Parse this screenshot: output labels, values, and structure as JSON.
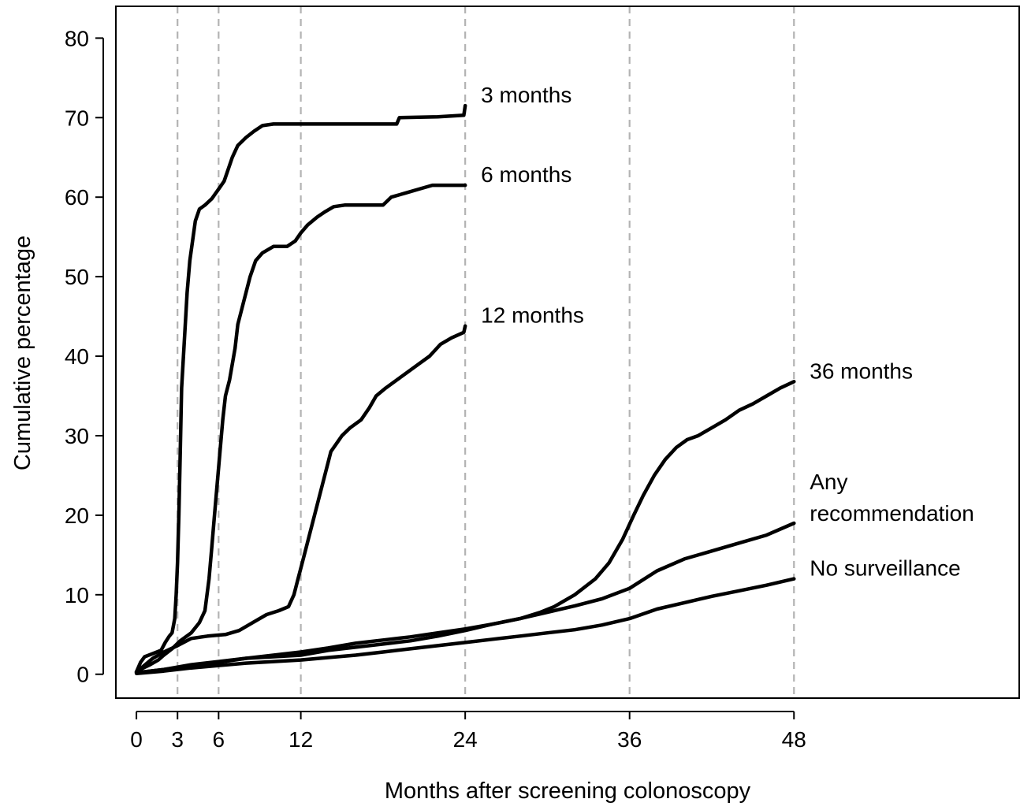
{
  "chart_data": {
    "type": "line",
    "xlabel": "Months after screening colonoscopy",
    "ylabel": "Cumulative percentage",
    "xlim": [
      -1.5,
      64.5
    ],
    "ylim": [
      -3,
      84
    ],
    "x_ticks": [
      0,
      3,
      6,
      12,
      24,
      36,
      48
    ],
    "y_ticks": [
      0,
      10,
      20,
      30,
      40,
      50,
      60,
      70,
      80
    ],
    "reference_lines_x": [
      3,
      6,
      12,
      24,
      36,
      48
    ],
    "grid": false,
    "series": [
      {
        "name": "3 months",
        "label_lines": [
          "3 months"
        ],
        "points": [
          [
            0,
            0.3
          ],
          [
            0.3,
            1.5
          ],
          [
            0.6,
            2.2
          ],
          [
            1.2,
            2.6
          ],
          [
            1.8,
            3.0
          ],
          [
            2.1,
            4.0
          ],
          [
            2.4,
            4.8
          ],
          [
            2.6,
            5.2
          ],
          [
            2.8,
            7.0
          ],
          [
            2.9,
            10
          ],
          [
            3.0,
            14
          ],
          [
            3.1,
            20
          ],
          [
            3.2,
            28
          ],
          [
            3.3,
            36
          ],
          [
            3.5,
            42
          ],
          [
            3.7,
            48
          ],
          [
            3.9,
            52
          ],
          [
            4.1,
            54.5
          ],
          [
            4.3,
            57
          ],
          [
            4.6,
            58.5
          ],
          [
            5.0,
            59
          ],
          [
            5.5,
            59.8
          ],
          [
            6.0,
            61
          ],
          [
            6.4,
            62
          ],
          [
            6.7,
            63.5
          ],
          [
            7.0,
            65
          ],
          [
            7.4,
            66.5
          ],
          [
            8.0,
            67.5
          ],
          [
            8.6,
            68.3
          ],
          [
            9.2,
            69.0
          ],
          [
            10,
            69.2
          ],
          [
            16,
            69.2
          ],
          [
            19,
            69.2
          ],
          [
            19.2,
            70.0
          ],
          [
            22,
            70.1
          ],
          [
            23.9,
            70.3
          ],
          [
            24,
            71.5
          ]
        ]
      },
      {
        "name": "6 months",
        "label_lines": [
          "6 months"
        ],
        "points": [
          [
            0,
            0.3
          ],
          [
            0.5,
            0.8
          ],
          [
            1.0,
            1.2
          ],
          [
            1.6,
            1.8
          ],
          [
            2.0,
            2.4
          ],
          [
            2.6,
            3.2
          ],
          [
            3.2,
            4.2
          ],
          [
            4.0,
            5.2
          ],
          [
            4.6,
            6.5
          ],
          [
            5.0,
            8.0
          ],
          [
            5.3,
            12
          ],
          [
            5.5,
            16
          ],
          [
            5.7,
            20
          ],
          [
            5.9,
            24
          ],
          [
            6.1,
            28
          ],
          [
            6.3,
            32
          ],
          [
            6.5,
            35
          ],
          [
            6.8,
            37
          ],
          [
            7.0,
            39
          ],
          [
            7.2,
            41
          ],
          [
            7.4,
            44
          ],
          [
            7.7,
            46
          ],
          [
            8.0,
            48
          ],
          [
            8.3,
            50
          ],
          [
            8.7,
            52
          ],
          [
            9.2,
            53
          ],
          [
            10,
            53.8
          ],
          [
            11,
            53.8
          ],
          [
            11.6,
            54.5
          ],
          [
            12.0,
            55.5
          ],
          [
            12.5,
            56.5
          ],
          [
            13.2,
            57.5
          ],
          [
            13.8,
            58.2
          ],
          [
            14.4,
            58.8
          ],
          [
            15.2,
            59.0
          ],
          [
            18.0,
            59.0
          ],
          [
            18.6,
            60.0
          ],
          [
            19.6,
            60.5
          ],
          [
            20.6,
            61.0
          ],
          [
            21.6,
            61.5
          ],
          [
            24,
            61.5
          ]
        ]
      },
      {
        "name": "12 months",
        "label_lines": [
          "12 months"
        ],
        "points": [
          [
            0,
            0.3
          ],
          [
            0.5,
            1.0
          ],
          [
            1.2,
            2.0
          ],
          [
            2.0,
            2.8
          ],
          [
            3.0,
            3.6
          ],
          [
            4.0,
            4.5
          ],
          [
            5.2,
            4.8
          ],
          [
            6.5,
            5.0
          ],
          [
            7.5,
            5.5
          ],
          [
            8.5,
            6.5
          ],
          [
            9.5,
            7.5
          ],
          [
            10.4,
            8.0
          ],
          [
            11.1,
            8.5
          ],
          [
            11.5,
            10
          ],
          [
            11.8,
            12
          ],
          [
            12.1,
            14
          ],
          [
            12.4,
            16
          ],
          [
            12.7,
            18
          ],
          [
            13.0,
            20
          ],
          [
            13.3,
            22
          ],
          [
            13.6,
            24
          ],
          [
            13.9,
            26
          ],
          [
            14.2,
            28
          ],
          [
            14.6,
            29
          ],
          [
            15.0,
            30
          ],
          [
            15.6,
            31
          ],
          [
            16.4,
            32
          ],
          [
            17.0,
            33.5
          ],
          [
            17.5,
            35
          ],
          [
            18.2,
            36
          ],
          [
            19.0,
            37
          ],
          [
            19.8,
            38
          ],
          [
            20.6,
            39
          ],
          [
            21.4,
            40
          ],
          [
            22.2,
            41.5
          ],
          [
            23.0,
            42.3
          ],
          [
            23.9,
            43
          ],
          [
            24,
            43.8
          ]
        ]
      },
      {
        "name": "36 months",
        "label_lines": [
          "36 months"
        ],
        "points": [
          [
            0,
            0.2
          ],
          [
            2,
            0.6
          ],
          [
            4,
            1.2
          ],
          [
            6,
            1.6
          ],
          [
            8,
            2.0
          ],
          [
            10,
            2.2
          ],
          [
            12,
            2.4
          ],
          [
            14,
            3.0
          ],
          [
            16,
            3.4
          ],
          [
            18,
            3.8
          ],
          [
            20,
            4.2
          ],
          [
            22,
            4.8
          ],
          [
            24,
            5.5
          ],
          [
            26,
            6.3
          ],
          [
            28,
            7.0
          ],
          [
            29.5,
            7.8
          ],
          [
            30.5,
            8.5
          ],
          [
            32,
            10
          ],
          [
            33.5,
            12
          ],
          [
            34.5,
            14
          ],
          [
            35.5,
            17
          ],
          [
            36.3,
            20
          ],
          [
            37,
            22.5
          ],
          [
            37.8,
            25
          ],
          [
            38.6,
            27
          ],
          [
            39.4,
            28.5
          ],
          [
            40.2,
            29.5
          ],
          [
            41,
            30
          ],
          [
            42,
            31
          ],
          [
            43,
            32
          ],
          [
            44,
            33.2
          ],
          [
            45,
            34
          ],
          [
            46,
            35
          ],
          [
            47,
            36
          ],
          [
            48,
            36.8
          ]
        ]
      },
      {
        "name": "Any recommendation",
        "label_lines": [
          "Any",
          "recommendation"
        ],
        "points": [
          [
            0,
            0.2
          ],
          [
            2,
            0.6
          ],
          [
            4,
            1.1
          ],
          [
            6,
            1.5
          ],
          [
            8,
            2.0
          ],
          [
            10,
            2.4
          ],
          [
            12,
            2.8
          ],
          [
            14,
            3.3
          ],
          [
            16,
            3.9
          ],
          [
            18,
            4.3
          ],
          [
            20,
            4.7
          ],
          [
            22,
            5.2
          ],
          [
            24,
            5.7
          ],
          [
            26,
            6.3
          ],
          [
            28,
            7.0
          ],
          [
            30,
            7.8
          ],
          [
            32,
            8.6
          ],
          [
            34,
            9.5
          ],
          [
            36,
            10.8
          ],
          [
            38,
            13.0
          ],
          [
            40,
            14.5
          ],
          [
            42,
            15.5
          ],
          [
            44,
            16.5
          ],
          [
            46,
            17.5
          ],
          [
            48,
            19.0
          ]
        ]
      },
      {
        "name": "No surveillance",
        "label_lines": [
          "No surveillance"
        ],
        "points": [
          [
            0,
            0.1
          ],
          [
            2,
            0.4
          ],
          [
            4,
            0.8
          ],
          [
            6,
            1.1
          ],
          [
            8,
            1.4
          ],
          [
            10,
            1.6
          ],
          [
            12,
            1.8
          ],
          [
            14,
            2.1
          ],
          [
            16,
            2.4
          ],
          [
            18,
            2.8
          ],
          [
            20,
            3.2
          ],
          [
            22,
            3.6
          ],
          [
            24,
            4.0
          ],
          [
            26,
            4.4
          ],
          [
            28,
            4.8
          ],
          [
            30,
            5.2
          ],
          [
            32,
            5.6
          ],
          [
            34,
            6.2
          ],
          [
            36,
            7.0
          ],
          [
            38,
            8.2
          ],
          [
            40,
            9.0
          ],
          [
            42,
            9.8
          ],
          [
            44,
            10.5
          ],
          [
            46,
            11.2
          ],
          [
            48,
            12.0
          ]
        ]
      }
    ]
  }
}
